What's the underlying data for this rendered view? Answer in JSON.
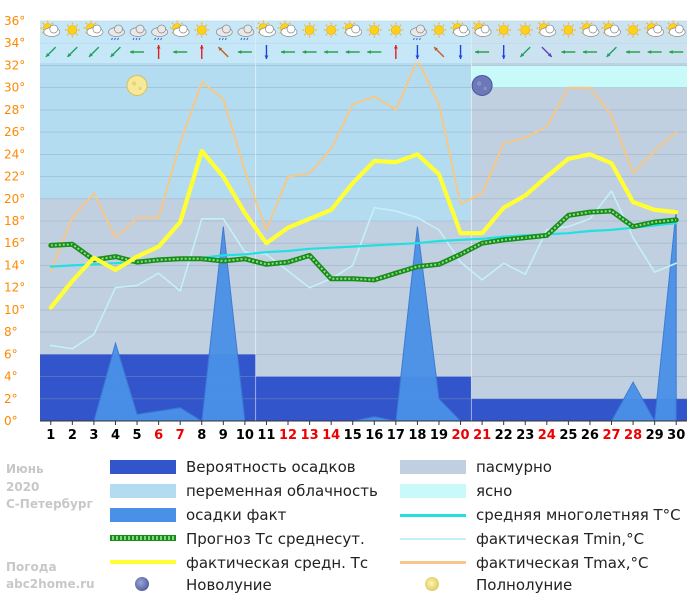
{
  "side": {
    "month": "Июнь",
    "year": "2020",
    "city": "С-Петербург",
    "site_label": "Погода",
    "site": "abc2home.ru"
  },
  "colors": {
    "precip_prob": "#3355cc",
    "partly_cloudy": "#b4dcf0",
    "precip_fact": "#4a90e8",
    "overcast": "#c0d0e0",
    "clear": "#c8fafa",
    "climate_avg": "#22e0e0",
    "forecast_avg": "#1a8c1a",
    "tmin": "#c4f0f8",
    "tmax": "#f5c88a",
    "actual_avg": "#ffff33"
  },
  "legend": [
    {
      "label": "Вероятность осадков",
      "key": "precip_prob"
    },
    {
      "label": "пасмурно",
      "key": "overcast"
    },
    {
      "label": "переменная облачность",
      "key": "partly_cloudy"
    },
    {
      "label": "ясно",
      "key": "clear"
    },
    {
      "label": "осадки факт",
      "key": "precip_fact"
    },
    {
      "label": "средняя многолетняя T°C",
      "key": "climate_avg"
    },
    {
      "label": "Прогноз Тс среднесут.",
      "key": "forecast_avg"
    },
    {
      "label": "фактическая Tmin,°C",
      "key": "tmin"
    },
    {
      "label": "фактическая средн. Тс",
      "key": "actual_avg"
    },
    {
      "label": "фактическая Tmax,°C",
      "key": "tmax"
    },
    {
      "label": "Новолуние",
      "key": "new_moon"
    },
    {
      "label": "Полнолуние",
      "key": "full_moon"
    }
  ],
  "chart_data": {
    "type": "line",
    "x": [
      1,
      2,
      3,
      4,
      5,
      6,
      7,
      8,
      9,
      10,
      11,
      12,
      13,
      14,
      15,
      16,
      17,
      18,
      19,
      20,
      21,
      22,
      23,
      24,
      25,
      26,
      27,
      28,
      29,
      30
    ],
    "x_tick_labels": [
      "1",
      "2",
      "3",
      "4",
      "5",
      "6",
      "7",
      "8",
      "9",
      "10",
      "11",
      "12",
      "13",
      "14",
      "15",
      "16",
      "17",
      "18",
      "19",
      "20",
      "21",
      "22",
      "23",
      "24",
      "25",
      "26",
      "27",
      "28",
      "29",
      "30"
    ],
    "weekend_days": [
      6,
      7,
      12,
      13,
      14,
      20,
      21,
      24,
      27,
      28
    ],
    "weekend_color": "#ee0000",
    "y_tick_labels": [
      "0°",
      "2°",
      "4°",
      "6°",
      "8°",
      "10°",
      "12°",
      "14°",
      "16°",
      "18°",
      "20°",
      "22°",
      "24°",
      "26°",
      "28°",
      "30°",
      "32°",
      "34°",
      "36°"
    ],
    "ylim": [
      0,
      36
    ],
    "grid": true,
    "series": [
      {
        "name": "фактическая Tmax,°C",
        "key": "tmax",
        "values": [
          13.5,
          18.3,
          20.5,
          16.5,
          18.3,
          18.3,
          25.0,
          30.5,
          29.0,
          22.5,
          17.2,
          22.0,
          22.3,
          24.5,
          28.5,
          29.2,
          28.0,
          32.5,
          28.5,
          19.5,
          20.5,
          25.0,
          25.5,
          26.5,
          30.0,
          30.0,
          27.5,
          22.3,
          24.3,
          26.0
        ]
      },
      {
        "name": "фактическая Tmin,°C",
        "key": "tmin",
        "values": [
          6.8,
          6.5,
          7.8,
          12.0,
          12.2,
          13.3,
          11.7,
          18.2,
          18.2,
          15.2,
          15.0,
          13.5,
          12.0,
          12.8,
          14.0,
          19.2,
          18.9,
          18.3,
          17.2,
          14.3,
          12.7,
          14.2,
          13.2,
          17.2,
          17.5,
          18.2,
          20.7,
          16.5,
          13.4,
          14.2
        ]
      },
      {
        "name": "средняя многолетняя T°C",
        "key": "climate_avg",
        "values": [
          13.9,
          14.0,
          14.1,
          14.2,
          14.3,
          14.4,
          14.6,
          14.7,
          14.9,
          15.0,
          15.2,
          15.3,
          15.5,
          15.6,
          15.7,
          15.8,
          15.9,
          16.0,
          16.2,
          16.3,
          16.4,
          16.6,
          16.7,
          16.8,
          16.9,
          17.1,
          17.2,
          17.4,
          17.6,
          17.8
        ]
      },
      {
        "name": "Прогноз Тс среднесут.",
        "key": "forecast_avg",
        "values": [
          15.8,
          15.9,
          14.5,
          14.8,
          14.3,
          14.5,
          14.6,
          14.6,
          14.4,
          14.6,
          14.1,
          14.3,
          14.9,
          12.8,
          12.8,
          12.7,
          13.3,
          13.9,
          14.1,
          15.0,
          16.0,
          16.3,
          16.5,
          16.7,
          18.5,
          18.8,
          18.9,
          17.5,
          17.9,
          18.1
        ]
      },
      {
        "name": "фактическая средн. Тс",
        "key": "actual_avg",
        "values": [
          10.2,
          12.6,
          14.7,
          13.6,
          14.8,
          15.7,
          17.9,
          24.3,
          22.0,
          18.7,
          16.0,
          17.4,
          18.2,
          19.0,
          21.4,
          23.4,
          23.3,
          24.0,
          22.2,
          16.9,
          16.9,
          19.2,
          20.3,
          22.0,
          23.6,
          24.0,
          23.2,
          19.7,
          19.0,
          18.8
        ]
      }
    ],
    "precip_fact": [
      0,
      0,
      0,
      7,
      0.6,
      0.9,
      1.2,
      0,
      17.5,
      0,
      0,
      0,
      0,
      0,
      0,
      0.4,
      0,
      17.5,
      2,
      0,
      0,
      0,
      0,
      0,
      0,
      0,
      0,
      3.5,
      0,
      19
    ],
    "precip_prob_blocks": [
      {
        "from": 1,
        "to": 10.5,
        "value": 6
      },
      {
        "from": 10.5,
        "to": 20.5,
        "value": 4
      },
      {
        "from": 20.5,
        "to": 30.5,
        "value": 2
      }
    ],
    "cloud_bands": [
      {
        "from": 0.5,
        "to": 10.5,
        "upper_level": 20,
        "upper_type": "partly_cloudy",
        "lower_type": "overcast"
      },
      {
        "from": 10.5,
        "to": 20.5,
        "upper_level": 18,
        "upper_type": "partly_cloudy",
        "lower_type": "overcast"
      },
      {
        "from": 20.5,
        "to": 30.5,
        "upper_level": 14,
        "upper_type": "overcast",
        "lower_type": "overcast"
      }
    ],
    "clear_band": {
      "from": 20.5,
      "to": 30.5,
      "y_from": 30,
      "y_to": 32
    },
    "moons": [
      {
        "phase": "full",
        "x": 5,
        "y": 30.2
      },
      {
        "phase": "new",
        "x": 21,
        "y": 30.2
      }
    ],
    "weather_icons": [
      "sun-cloud",
      "sun",
      "sun-cloud",
      "cloud-rain",
      "cloud-rain",
      "cloud-rain",
      "sun-cloud",
      "sun",
      "cloud-rain",
      "cloud-rain",
      "sun-cloud",
      "sun-cloud",
      "sun",
      "sun",
      "sun-cloud",
      "sun",
      "sun",
      "cloud-rain",
      "sun",
      "sun-cloud",
      "sun-cloud",
      "sun",
      "sun",
      "sun-cloud",
      "sun",
      "sun-cloud",
      "sun-cloud",
      "sun",
      "sun-cloud",
      "sun-cloud"
    ],
    "wind_dirs": [
      "sw",
      "sw",
      "sw",
      "sw",
      "w",
      "n",
      "w",
      "n",
      "nw",
      "w",
      "s",
      "w",
      "w",
      "w",
      "w",
      "w",
      "n",
      "s",
      "nw",
      "s",
      "w",
      "s",
      "sw",
      "se",
      "w",
      "w",
      "sw",
      "w",
      "w",
      "w"
    ]
  }
}
